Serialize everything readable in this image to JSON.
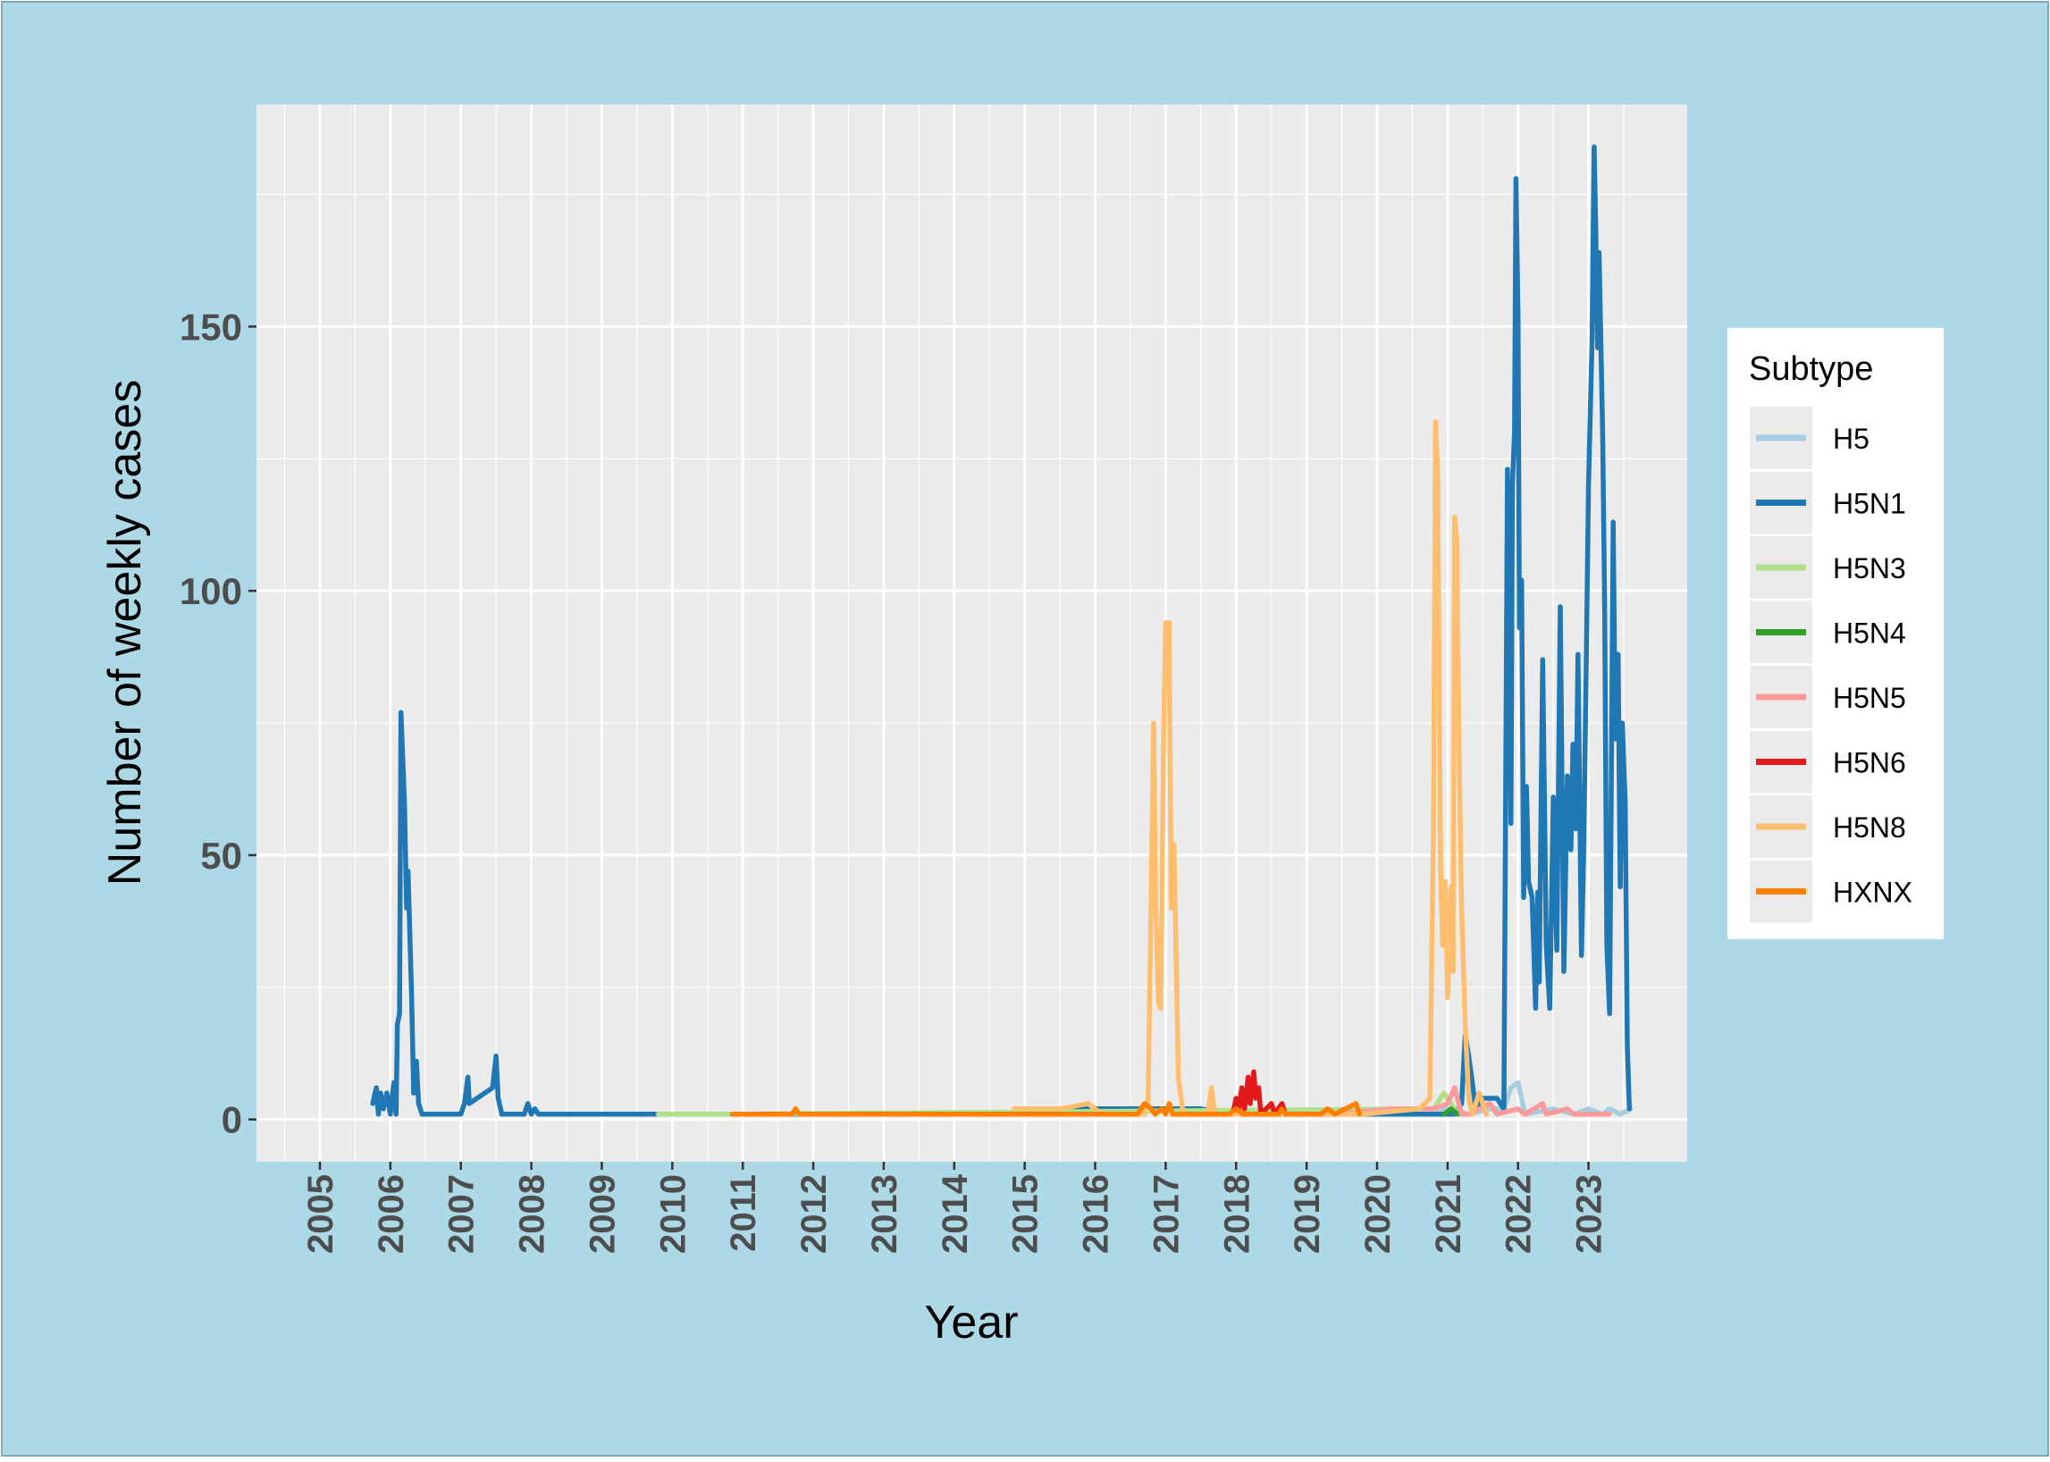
{
  "chart_data": {
    "type": "line",
    "xlabel": "Year",
    "ylabel": "Number of weekly cases",
    "x_ticks": [
      "2005",
      "2006",
      "2007",
      "2008",
      "2009",
      "2010",
      "2011",
      "2012",
      "2013",
      "2014",
      "2015",
      "2016",
      "2017",
      "2018",
      "2019",
      "2020",
      "2021",
      "2022",
      "2023"
    ],
    "y_ticks": [
      0,
      50,
      100,
      150
    ],
    "xlim": [
      2004.1,
      2024.4
    ],
    "ylim": [
      -8,
      192
    ],
    "grid": true,
    "legend_title": "Subtype",
    "legend_position": "right",
    "series": [
      {
        "name": "H5",
        "color": "#a6cee3",
        "points": [
          [
            2020.2,
            1
          ],
          [
            2020.8,
            1
          ],
          [
            2021.0,
            2
          ],
          [
            2021.3,
            1
          ],
          [
            2021.6,
            2
          ],
          [
            2021.8,
            2
          ],
          [
            2021.9,
            6
          ],
          [
            2022.0,
            7
          ],
          [
            2022.1,
            1
          ],
          [
            2022.5,
            2
          ],
          [
            2022.8,
            1
          ],
          [
            2023.0,
            2
          ],
          [
            2023.2,
            1
          ],
          [
            2023.3,
            2
          ],
          [
            2023.45,
            1
          ],
          [
            2023.6,
            2
          ]
        ]
      },
      {
        "name": "H5N1",
        "color": "#1f78b4",
        "points": [
          [
            2005.75,
            3
          ],
          [
            2005.8,
            6
          ],
          [
            2005.83,
            1
          ],
          [
            2005.86,
            5
          ],
          [
            2005.9,
            2
          ],
          [
            2005.95,
            5
          ],
          [
            2006.0,
            1
          ],
          [
            2006.05,
            7
          ],
          [
            2006.08,
            1
          ],
          [
            2006.1,
            18
          ],
          [
            2006.13,
            20
          ],
          [
            2006.15,
            77
          ],
          [
            2006.2,
            60
          ],
          [
            2006.23,
            40
          ],
          [
            2006.25,
            47
          ],
          [
            2006.3,
            24
          ],
          [
            2006.33,
            5
          ],
          [
            2006.37,
            11
          ],
          [
            2006.4,
            3
          ],
          [
            2006.45,
            1
          ],
          [
            2007.0,
            1
          ],
          [
            2007.05,
            3
          ],
          [
            2007.1,
            8
          ],
          [
            2007.12,
            3
          ],
          [
            2007.45,
            6
          ],
          [
            2007.5,
            12
          ],
          [
            2007.53,
            4
          ],
          [
            2007.58,
            1
          ],
          [
            2007.9,
            1
          ],
          [
            2007.95,
            3
          ],
          [
            2008.0,
            1
          ],
          [
            2008.05,
            2
          ],
          [
            2008.1,
            1
          ],
          [
            2009.8,
            1
          ],
          [
            2014.9,
            1
          ],
          [
            2015.2,
            2
          ],
          [
            2016.0,
            2
          ],
          [
            2017.0,
            2
          ],
          [
            2017.5,
            2
          ],
          [
            2017.9,
            1
          ],
          [
            2019.0,
            1
          ],
          [
            2020.8,
            1
          ],
          [
            2021.1,
            1
          ],
          [
            2021.2,
            3
          ],
          [
            2021.25,
            16
          ],
          [
            2021.3,
            12
          ],
          [
            2021.35,
            7
          ],
          [
            2021.4,
            2
          ],
          [
            2021.5,
            4
          ],
          [
            2021.7,
            4
          ],
          [
            2021.8,
            2
          ],
          [
            2021.85,
            123
          ],
          [
            2021.87,
            100
          ],
          [
            2021.9,
            56
          ],
          [
            2021.92,
            120
          ],
          [
            2021.95,
            130
          ],
          [
            2021.97,
            178
          ],
          [
            2022.0,
            152
          ],
          [
            2022.02,
            93
          ],
          [
            2022.05,
            102
          ],
          [
            2022.08,
            42
          ],
          [
            2022.12,
            63
          ],
          [
            2022.15,
            45
          ],
          [
            2022.2,
            42
          ],
          [
            2022.25,
            21
          ],
          [
            2022.28,
            43
          ],
          [
            2022.3,
            26
          ],
          [
            2022.35,
            87
          ],
          [
            2022.4,
            33
          ],
          [
            2022.45,
            21
          ],
          [
            2022.5,
            61
          ],
          [
            2022.55,
            32
          ],
          [
            2022.6,
            97
          ],
          [
            2022.65,
            28
          ],
          [
            2022.7,
            65
          ],
          [
            2022.75,
            51
          ],
          [
            2022.78,
            71
          ],
          [
            2022.82,
            55
          ],
          [
            2022.85,
            88
          ],
          [
            2022.9,
            31
          ],
          [
            2022.93,
            50
          ],
          [
            2022.97,
            88
          ],
          [
            2023.0,
            120
          ],
          [
            2023.05,
            147
          ],
          [
            2023.08,
            184
          ],
          [
            2023.1,
            170
          ],
          [
            2023.13,
            146
          ],
          [
            2023.15,
            164
          ],
          [
            2023.2,
            130
          ],
          [
            2023.23,
            96
          ],
          [
            2023.26,
            33
          ],
          [
            2023.3,
            20
          ],
          [
            2023.33,
            76
          ],
          [
            2023.35,
            113
          ],
          [
            2023.38,
            72
          ],
          [
            2023.42,
            88
          ],
          [
            2023.45,
            44
          ],
          [
            2023.48,
            75
          ],
          [
            2023.52,
            60
          ],
          [
            2023.55,
            14
          ],
          [
            2023.58,
            2
          ]
        ]
      },
      {
        "name": "H5N3",
        "color": "#b2df8a",
        "points": [
          [
            2009.8,
            1
          ],
          [
            2010.85,
            1
          ],
          [
            2020.8,
            2
          ],
          [
            2020.95,
            5
          ],
          [
            2021.05,
            3
          ],
          [
            2021.15,
            1
          ]
        ]
      },
      {
        "name": "H5N4",
        "color": "#33a02c",
        "points": [
          [
            2020.95,
            1
          ],
          [
            2021.05,
            2
          ],
          [
            2021.15,
            1
          ]
        ]
      },
      {
        "name": "H5N5",
        "color": "#fb9a99",
        "points": [
          [
            2019.4,
            1
          ],
          [
            2020.2,
            2
          ],
          [
            2020.8,
            2
          ],
          [
            2021.0,
            3
          ],
          [
            2021.1,
            6
          ],
          [
            2021.2,
            1
          ],
          [
            2021.3,
            1
          ],
          [
            2021.6,
            3
          ],
          [
            2021.7,
            1
          ],
          [
            2022.0,
            2
          ],
          [
            2022.1,
            1
          ],
          [
            2022.35,
            3
          ],
          [
            2022.4,
            1
          ],
          [
            2022.7,
            2
          ],
          [
            2022.8,
            1
          ],
          [
            2023.0,
            1
          ],
          [
            2023.3,
            1
          ]
        ]
      },
      {
        "name": "H5N6",
        "color": "#e31a1c",
        "points": [
          [
            2017.8,
            1
          ],
          [
            2017.95,
            1
          ],
          [
            2018.0,
            4
          ],
          [
            2018.03,
            1
          ],
          [
            2018.08,
            6
          ],
          [
            2018.12,
            2
          ],
          [
            2018.17,
            8
          ],
          [
            2018.2,
            3
          ],
          [
            2018.25,
            9
          ],
          [
            2018.28,
            4
          ],
          [
            2018.32,
            6
          ],
          [
            2018.35,
            1
          ],
          [
            2018.5,
            3
          ],
          [
            2018.55,
            1
          ],
          [
            2018.65,
            3
          ],
          [
            2018.7,
            1
          ],
          [
            2019.2,
            1
          ]
        ]
      },
      {
        "name": "H5N8",
        "color": "#fdbf6f",
        "points": [
          [
            2014.85,
            2
          ],
          [
            2015.1,
            2
          ],
          [
            2015.5,
            2
          ],
          [
            2015.9,
            3
          ],
          [
            2016.1,
            1
          ],
          [
            2016.7,
            1
          ],
          [
            2016.75,
            3
          ],
          [
            2016.83,
            75
          ],
          [
            2016.86,
            40
          ],
          [
            2016.9,
            22
          ],
          [
            2016.93,
            21
          ],
          [
            2016.97,
            70
          ],
          [
            2017.0,
            94
          ],
          [
            2017.05,
            94
          ],
          [
            2017.08,
            40
          ],
          [
            2017.12,
            52
          ],
          [
            2017.18,
            8
          ],
          [
            2017.25,
            1
          ],
          [
            2017.6,
            1
          ],
          [
            2017.65,
            6
          ],
          [
            2017.7,
            1
          ],
          [
            2018.5,
            1
          ],
          [
            2019.8,
            1
          ],
          [
            2020.6,
            2
          ],
          [
            2020.75,
            4
          ],
          [
            2020.8,
            55
          ],
          [
            2020.83,
            132
          ],
          [
            2020.86,
            122
          ],
          [
            2020.9,
            48
          ],
          [
            2020.93,
            33
          ],
          [
            2020.97,
            45
          ],
          [
            2021.0,
            23
          ],
          [
            2021.03,
            37
          ],
          [
            2021.05,
            44
          ],
          [
            2021.08,
            28
          ],
          [
            2021.1,
            114
          ],
          [
            2021.13,
            110
          ],
          [
            2021.17,
            64
          ],
          [
            2021.2,
            40
          ],
          [
            2021.25,
            18
          ],
          [
            2021.3,
            4
          ],
          [
            2021.35,
            1
          ],
          [
            2021.45,
            5
          ],
          [
            2021.55,
            1
          ]
        ]
      },
      {
        "name": "HXNX",
        "color": "#ff7f00",
        "points": [
          [
            2010.85,
            1
          ],
          [
            2011.7,
            1
          ],
          [
            2011.75,
            2
          ],
          [
            2011.8,
            1
          ],
          [
            2016.6,
            1
          ],
          [
            2016.7,
            3
          ],
          [
            2016.8,
            2
          ],
          [
            2016.85,
            1
          ],
          [
            2016.95,
            2
          ],
          [
            2017.0,
            1
          ],
          [
            2017.05,
            3
          ],
          [
            2017.1,
            1
          ],
          [
            2017.9,
            1
          ],
          [
            2018.0,
            2
          ],
          [
            2018.1,
            1
          ],
          [
            2018.6,
            1
          ],
          [
            2018.65,
            2
          ],
          [
            2018.7,
            1
          ],
          [
            2019.2,
            1
          ],
          [
            2019.3,
            2
          ],
          [
            2019.4,
            1
          ],
          [
            2019.7,
            3
          ],
          [
            2019.75,
            1
          ]
        ]
      }
    ]
  }
}
